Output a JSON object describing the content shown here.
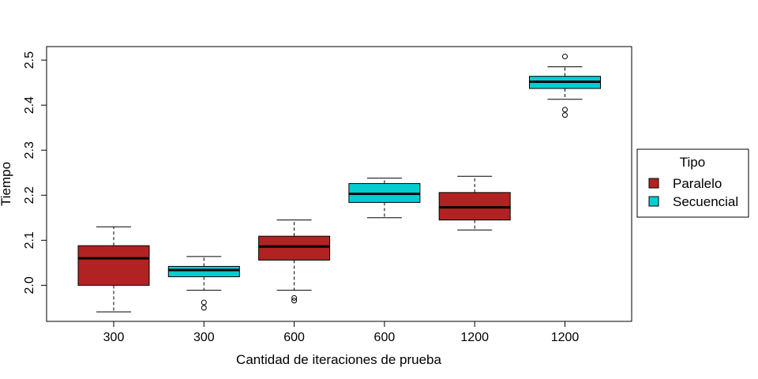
{
  "chart_data": {
    "type": "boxplot",
    "title": "",
    "xlabel": "Cantidad de iteraciones de prueba",
    "ylabel": "Tiempo",
    "ylim": [
      1.92,
      2.53
    ],
    "yticks": [
      2.0,
      2.1,
      2.2,
      2.3,
      2.4,
      2.5
    ],
    "ytick_labels": [
      "2.0",
      "2.1",
      "2.2",
      "2.3",
      "2.4",
      "2.5"
    ],
    "categories": [
      "300",
      "300",
      "600",
      "600",
      "1200",
      "1200"
    ],
    "groups": [
      "Paralelo",
      "Secuencial",
      "Paralelo",
      "Secuencial",
      "Paralelo",
      "Secuencial"
    ],
    "boxes": [
      {
        "whisker_low": 1.941,
        "q1": 2.0,
        "median": 2.06,
        "q3": 2.088,
        "whisker_high": 2.13,
        "outliers": []
      },
      {
        "whisker_low": 1.989,
        "q1": 2.019,
        "median": 2.034,
        "q3": 2.042,
        "whisker_high": 2.064,
        "outliers": [
          1.962,
          1.95
        ]
      },
      {
        "whisker_low": 1.989,
        "q1": 2.056,
        "median": 2.086,
        "q3": 2.109,
        "whisker_high": 2.145,
        "outliers": [
          1.972,
          1.966
        ]
      },
      {
        "whisker_low": 2.15,
        "q1": 2.184,
        "median": 2.203,
        "q3": 2.226,
        "whisker_high": 2.238,
        "outliers": []
      },
      {
        "whisker_low": 2.123,
        "q1": 2.145,
        "median": 2.173,
        "q3": 2.206,
        "whisker_high": 2.242,
        "outliers": []
      },
      {
        "whisker_low": 2.413,
        "q1": 2.437,
        "median": 2.452,
        "q3": 2.464,
        "whisker_high": 2.485,
        "outliers": [
          2.508,
          2.39,
          2.378
        ]
      }
    ],
    "legend": {
      "title": "Tipo",
      "position": "right",
      "entries": [
        {
          "label": "Paralelo",
          "color": "#B22222"
        },
        {
          "label": "Secuencial",
          "color": "#00CED1"
        }
      ]
    },
    "colors": {
      "Paralelo": "#B22222",
      "Secuencial": "#00CED1"
    }
  }
}
